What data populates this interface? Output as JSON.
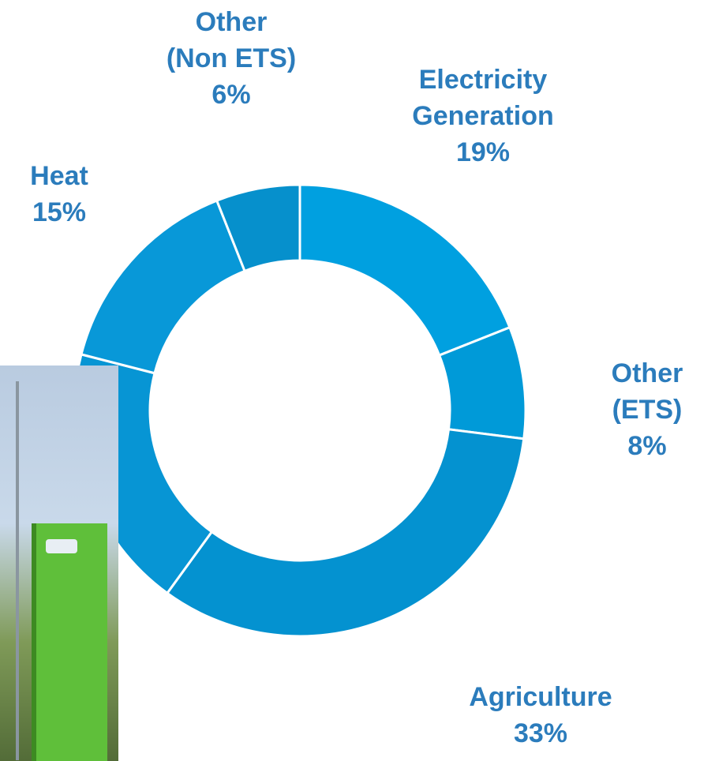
{
  "chart_data": {
    "type": "donut",
    "categories": [
      "Electricity\nGeneration",
      "Other\n(ETS)",
      "Agriculture",
      null,
      "Heat",
      "Other\n(Non ETS)"
    ],
    "values": [
      19,
      8,
      33,
      19,
      15,
      6
    ],
    "value_labels": [
      "19%",
      "8%",
      "33%",
      null,
      "15%",
      "6%"
    ],
    "colors": [
      "#00a0e0",
      "#009ad8",
      "#0492d0",
      "#0795d4",
      "#0898d8",
      "#0690cc"
    ]
  }
}
